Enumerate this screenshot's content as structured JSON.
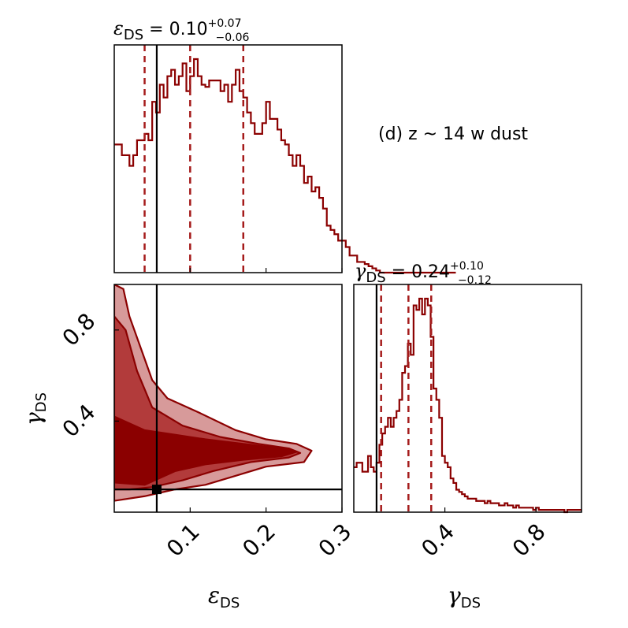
{
  "chart_data": {
    "type": "corner",
    "annotation": "(d) z ~  14 w dust",
    "truth": {
      "eps_ds": 0.056,
      "gamma_ds": 0.1
    },
    "parameters": [
      {
        "key": "eps",
        "symbol": "ε",
        "subscript": "DS",
        "summary": {
          "median": "0.10",
          "plus": "+0.07",
          "minus": "−0.06",
          "q16": 0.04,
          "q50": 0.1,
          "q84": 0.17
        },
        "range": [
          0.0,
          0.3
        ],
        "ticks": [
          "0.1",
          "0.2",
          "0.3"
        ],
        "tick_values": [
          0.1,
          0.2,
          0.3
        ],
        "hist_edges_start": 0.0,
        "hist_bin_width": 0.005,
        "hist_counts": [
          0.6,
          0.6,
          0.55,
          0.55,
          0.5,
          0.55,
          0.62,
          0.62,
          0.65,
          0.62,
          0.8,
          0.75,
          0.88,
          0.82,
          0.92,
          0.95,
          0.88,
          0.92,
          0.98,
          0.85,
          0.92,
          1.0,
          0.92,
          0.88,
          0.87,
          0.9,
          0.9,
          0.9,
          0.85,
          0.88,
          0.8,
          0.88,
          0.95,
          0.85,
          0.82,
          0.75,
          0.7,
          0.65,
          0.65,
          0.7,
          0.8,
          0.72,
          0.72,
          0.67,
          0.62,
          0.6,
          0.55,
          0.5,
          0.55,
          0.5,
          0.42,
          0.45,
          0.38,
          0.4,
          0.35,
          0.3,
          0.22,
          0.2,
          0.18,
          0.15,
          0.15,
          0.12,
          0.08,
          0.08,
          0.05,
          0.05,
          0.04,
          0.03,
          0.02,
          0.01,
          0.0,
          0.0,
          0.0,
          0.0,
          0.0,
          0.0,
          0.0,
          0.0,
          0.0,
          0.0,
          0.0,
          0.0,
          0.0,
          0.0,
          0.0,
          0.0,
          0.0,
          0.0,
          0.0,
          0.0
        ]
      },
      {
        "key": "gamma",
        "symbol": "γ",
        "subscript": "DS",
        "summary": {
          "median": "0.24",
          "plus": "+0.10",
          "minus": "−0.12",
          "q16": 0.12,
          "q50": 0.24,
          "q84": 0.34
        },
        "range": [
          0.0,
          1.0
        ],
        "ticks": [
          "0.4",
          "0.8"
        ],
        "tick_values": [
          0.4,
          0.8
        ],
        "hist_edges_start": 0.0,
        "hist_bin_width": 0.0125,
        "hist_counts": [
          0.2,
          0.22,
          0.22,
          0.18,
          0.18,
          0.25,
          0.2,
          0.18,
          0.22,
          0.3,
          0.35,
          0.38,
          0.42,
          0.38,
          0.42,
          0.45,
          0.5,
          0.62,
          0.65,
          0.75,
          0.7,
          0.92,
          0.9,
          0.95,
          0.88,
          0.95,
          0.92,
          0.78,
          0.55,
          0.5,
          0.42,
          0.25,
          0.22,
          0.2,
          0.15,
          0.13,
          0.1,
          0.09,
          0.08,
          0.07,
          0.06,
          0.06,
          0.06,
          0.05,
          0.05,
          0.05,
          0.04,
          0.05,
          0.04,
          0.04,
          0.04,
          0.03,
          0.03,
          0.04,
          0.03,
          0.03,
          0.02,
          0.03,
          0.02,
          0.02,
          0.02,
          0.02,
          0.02,
          0.01,
          0.02,
          0.01,
          0.01,
          0.01,
          0.01,
          0.01,
          0.01,
          0.01,
          0.01,
          0.01,
          0.0,
          0.01,
          0.01,
          0.01,
          0.01,
          0.01
        ]
      }
    ],
    "joint_2d": {
      "x_param": "eps",
      "y_param": "gamma",
      "contour_levels": [
        "inner",
        "middle",
        "outer"
      ],
      "colors": {
        "outer": "#d79a9a",
        "middle": "#b23b3b",
        "inner": "#8b0000",
        "line": "#8b0000"
      }
    }
  }
}
